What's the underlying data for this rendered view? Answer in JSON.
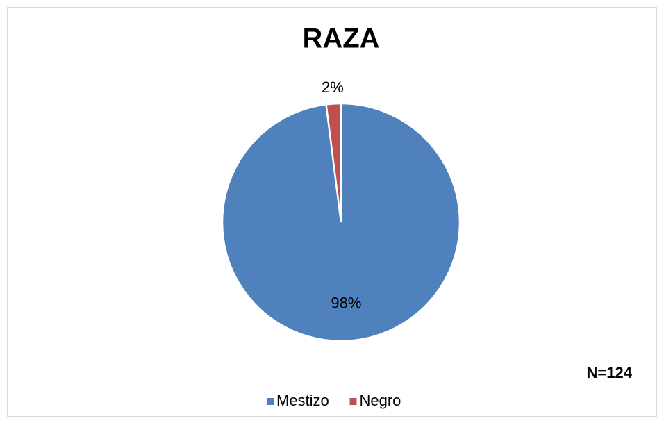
{
  "chart_data": {
    "type": "pie",
    "title": "RAZA",
    "categories": [
      "Mestizo",
      "Negro"
    ],
    "values": [
      98,
      2
    ],
    "value_labels": [
      "98%",
      "2%"
    ],
    "colors": [
      "#4f81bd",
      "#c0504d"
    ],
    "annotation": "N=124",
    "legend": "bottom"
  }
}
